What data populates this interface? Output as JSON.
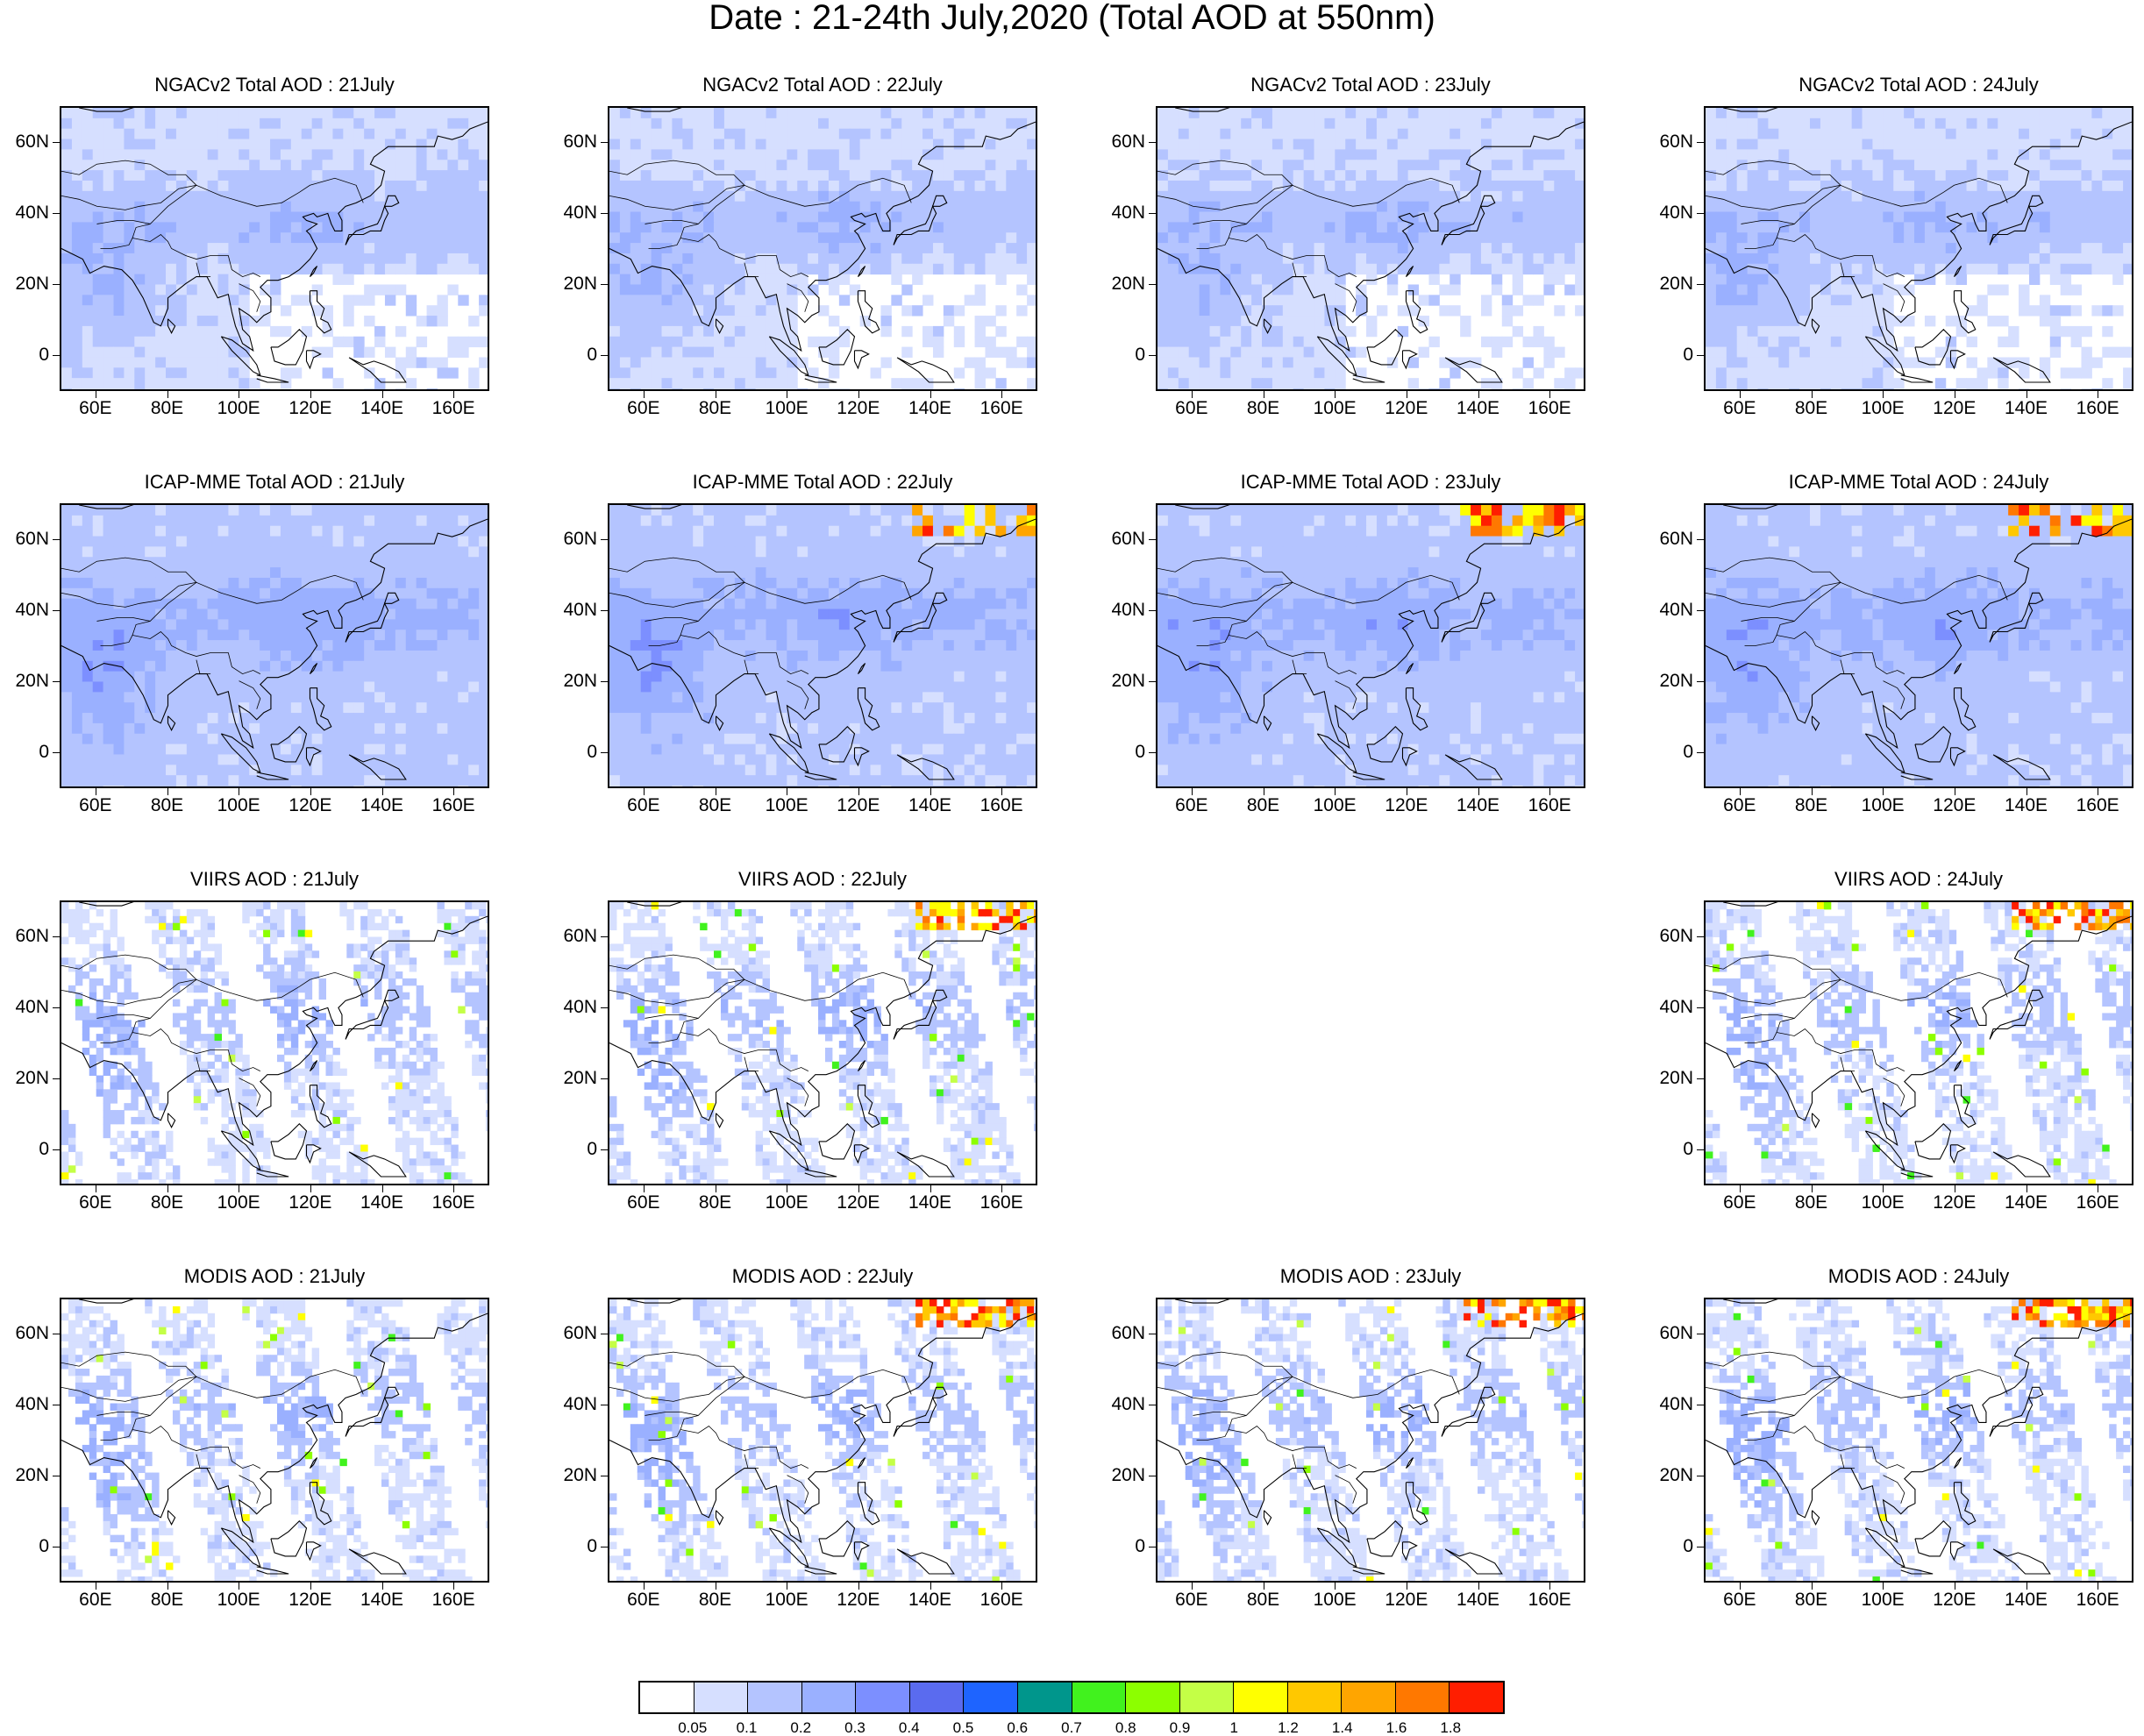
{
  "figure": {
    "title": "Date : 21-24th July,2020 (Total AOD at 550nm)",
    "lat_ticks": [
      "60N",
      "40N",
      "20N",
      "0"
    ],
    "lon_ticks": [
      "60E",
      "80E",
      "100E",
      "120E",
      "140E",
      "160E"
    ],
    "lat_values": [
      60,
      40,
      20,
      0
    ],
    "lon_values": [
      60,
      80,
      100,
      120,
      140,
      160
    ],
    "lon_range": [
      50,
      170
    ],
    "lat_range": [
      -10,
      70
    ]
  },
  "panels": [
    {
      "title": "NGACv2 Total AOD : 21July",
      "row": 0,
      "col": 0,
      "kind": "model",
      "seed": 11
    },
    {
      "title": "NGACv2 Total AOD : 22July",
      "row": 0,
      "col": 1,
      "kind": "model",
      "seed": 12
    },
    {
      "title": "NGACv2 Total AOD : 23July",
      "row": 0,
      "col": 2,
      "kind": "model",
      "seed": 13
    },
    {
      "title": "NGACv2 Total AOD : 24July",
      "row": 0,
      "col": 3,
      "kind": "model",
      "seed": 14
    },
    {
      "title": "ICAP-MME Total AOD : 21July",
      "row": 1,
      "col": 0,
      "kind": "ensemble",
      "seed": 21
    },
    {
      "title": "ICAP-MME Total AOD : 22July",
      "row": 1,
      "col": 1,
      "kind": "ensemble",
      "seed": 22
    },
    {
      "title": "ICAP-MME Total AOD : 23July",
      "row": 1,
      "col": 2,
      "kind": "ensemble",
      "seed": 23
    },
    {
      "title": "ICAP-MME Total AOD : 24July",
      "row": 1,
      "col": 3,
      "kind": "ensemble",
      "seed": 24
    },
    {
      "title": "VIIRS AOD : 21July",
      "row": 2,
      "col": 0,
      "kind": "satellite",
      "seed": 31
    },
    {
      "title": "VIIRS AOD : 22July",
      "row": 2,
      "col": 1,
      "kind": "satellite",
      "seed": 32
    },
    {
      "title": "VIIRS AOD : 24July",
      "row": 2,
      "col": 3,
      "kind": "satellite",
      "seed": 34
    },
    {
      "title": "MODIS AOD : 21July",
      "row": 3,
      "col": 0,
      "kind": "satellite",
      "seed": 41
    },
    {
      "title": "MODIS AOD : 22July",
      "row": 3,
      "col": 1,
      "kind": "satellite",
      "seed": 42
    },
    {
      "title": "MODIS AOD : 23July",
      "row": 3,
      "col": 2,
      "kind": "satellite",
      "seed": 43
    },
    {
      "title": "MODIS AOD : 24July",
      "row": 3,
      "col": 3,
      "kind": "satellite",
      "seed": 44
    }
  ],
  "colorbar": {
    "colors": [
      "#ffffff",
      "#d6dfff",
      "#b4c4ff",
      "#9ab0ff",
      "#7c8fff",
      "#5a6bef",
      "#1e64ff",
      "#00968c",
      "#41f21e",
      "#8cff00",
      "#c4ff46",
      "#ffff00",
      "#ffc800",
      "#ffa500",
      "#ff7800",
      "#ff1e00"
    ],
    "labels": [
      "0.05",
      "0.1",
      "0.2",
      "0.3",
      "0.4",
      "0.5",
      "0.6",
      "0.7",
      "0.8",
      "0.9",
      "1",
      "1.2",
      "1.4",
      "1.6",
      "1.8"
    ]
  }
}
